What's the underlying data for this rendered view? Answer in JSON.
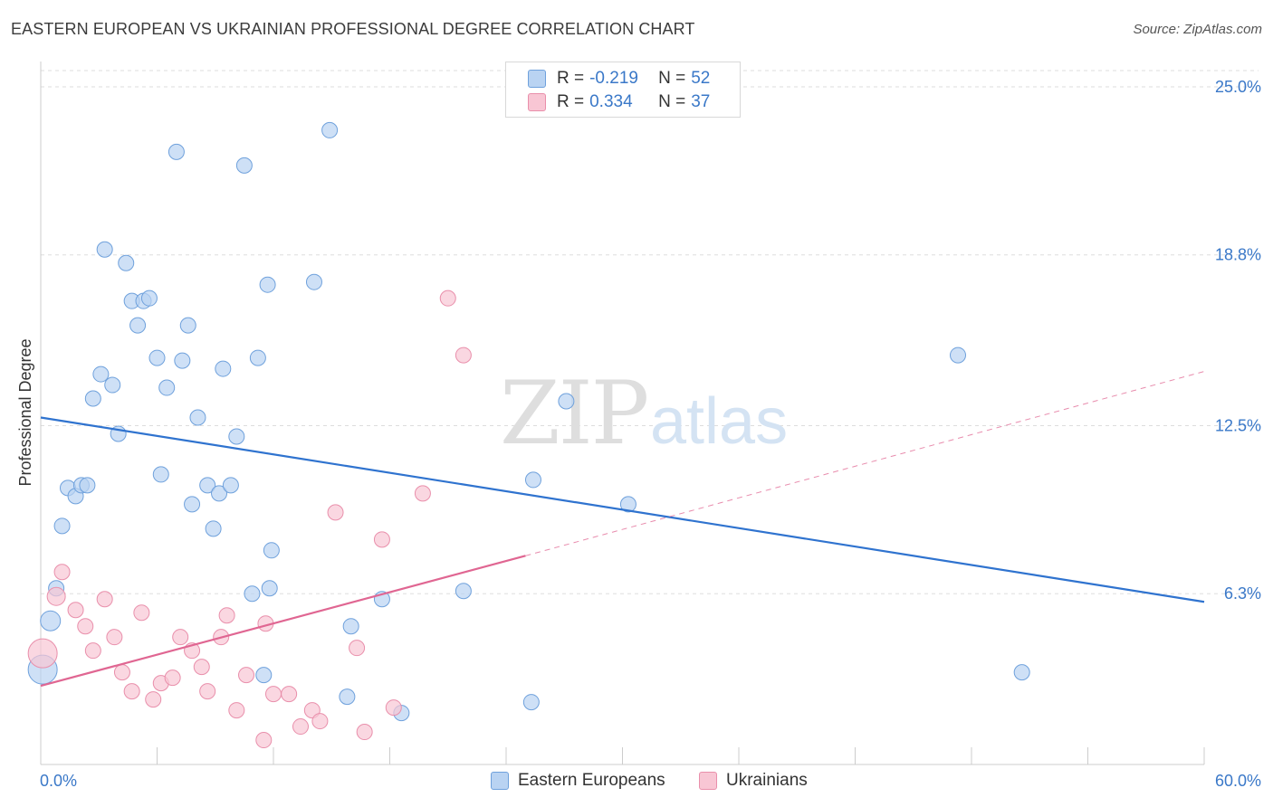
{
  "title": "EASTERN EUROPEAN VS UKRAINIAN PROFESSIONAL DEGREE CORRELATION CHART",
  "source": "Source: ZipAtlas.com",
  "watermark": {
    "zip": "ZIP",
    "atlas": "atlas"
  },
  "colors": {
    "blue_fill": "#b9d3f2",
    "blue_stroke": "#6fa1dc",
    "blue_line": "#2f73cf",
    "pink_fill": "#f8c6d4",
    "pink_stroke": "#e98fab",
    "pink_line": "#e06692",
    "tick_text": "#3a78c8",
    "grid": "#dddddd"
  },
  "legend": {
    "rows": [
      {
        "r_label": "R =",
        "r_value": "-0.219",
        "n_label": "N =",
        "n_value": "52",
        "color": "blue"
      },
      {
        "r_label": "R =",
        "r_value": "0.334",
        "n_label": "N =",
        "n_value": "37",
        "color": "pink"
      }
    ]
  },
  "bottom_legend": [
    {
      "label": "Eastern Europeans",
      "color": "blue"
    },
    {
      "label": "Ukrainians",
      "color": "pink"
    }
  ],
  "chart_data": {
    "type": "scatter",
    "title": "EASTERN EUROPEAN VS UKRAINIAN PROFESSIONAL DEGREE CORRELATION CHART",
    "xlabel": "",
    "ylabel": "Professional Degree",
    "xlim": [
      0,
      60
    ],
    "ylim": [
      0,
      25.6
    ],
    "x_tick_labels": [
      {
        "value": 0,
        "label": "0.0%"
      },
      {
        "value": 60,
        "label": "60.0%"
      }
    ],
    "y_tick_labels": [
      {
        "value": 25.0,
        "label": "25.0%"
      },
      {
        "value": 18.8,
        "label": "18.8%"
      },
      {
        "value": 12.5,
        "label": "12.5%"
      },
      {
        "value": 6.3,
        "label": "6.3%"
      }
    ],
    "grid": true,
    "legend_position": "top-center",
    "series": [
      {
        "name": "Eastern Europeans",
        "color": "blue",
        "trend": {
          "x": [
            0,
            60
          ],
          "y": [
            12.8,
            6.0
          ],
          "style": "solid"
        },
        "points": [
          [
            0.1,
            3.5,
            16
          ],
          [
            0.5,
            5.3,
            11
          ],
          [
            0.8,
            6.5,
            8
          ],
          [
            1.1,
            8.8,
            8
          ],
          [
            1.4,
            10.2,
            8
          ],
          [
            1.8,
            9.9,
            8
          ],
          [
            2.1,
            10.3,
            8
          ],
          [
            2.4,
            10.3,
            8
          ],
          [
            2.7,
            13.5,
            8
          ],
          [
            3.1,
            14.4,
            8
          ],
          [
            3.3,
            19.0,
            8
          ],
          [
            3.7,
            14.0,
            8
          ],
          [
            4.0,
            12.2,
            8
          ],
          [
            4.4,
            18.5,
            8
          ],
          [
            4.7,
            17.1,
            8
          ],
          [
            5.0,
            16.2,
            8
          ],
          [
            5.3,
            17.1,
            8
          ],
          [
            5.6,
            17.2,
            8
          ],
          [
            6.0,
            15.0,
            8
          ],
          [
            6.2,
            10.7,
            8
          ],
          [
            6.5,
            13.9,
            8
          ],
          [
            7.0,
            22.6,
            8
          ],
          [
            7.3,
            14.9,
            8
          ],
          [
            7.6,
            16.2,
            8
          ],
          [
            7.8,
            9.6,
            8
          ],
          [
            8.1,
            12.8,
            8
          ],
          [
            8.6,
            10.3,
            8
          ],
          [
            8.9,
            8.7,
            8
          ],
          [
            9.2,
            10.0,
            8
          ],
          [
            9.4,
            14.6,
            8
          ],
          [
            9.8,
            10.3,
            8
          ],
          [
            10.1,
            12.1,
            8
          ],
          [
            10.5,
            22.1,
            8
          ],
          [
            10.9,
            6.3,
            8
          ],
          [
            11.2,
            15.0,
            8
          ],
          [
            11.5,
            3.3,
            8
          ],
          [
            11.7,
            17.7,
            8
          ],
          [
            11.8,
            6.5,
            8
          ],
          [
            11.9,
            7.9,
            8
          ],
          [
            14.1,
            17.8,
            8
          ],
          [
            14.9,
            23.4,
            8
          ],
          [
            15.8,
            2.5,
            8
          ],
          [
            16.0,
            5.1,
            8
          ],
          [
            17.6,
            6.1,
            8
          ],
          [
            18.6,
            1.9,
            8
          ],
          [
            21.8,
            6.4,
            8
          ],
          [
            25.3,
            2.3,
            8
          ],
          [
            25.4,
            10.5,
            8
          ],
          [
            27.1,
            13.4,
            8
          ],
          [
            30.3,
            9.6,
            8
          ],
          [
            47.3,
            15.1,
            8
          ],
          [
            50.6,
            3.4,
            8
          ]
        ]
      },
      {
        "name": "Ukrainians",
        "color": "pink",
        "trend": {
          "x": [
            0,
            25
          ],
          "y": [
            2.9,
            7.7
          ],
          "style": "solid",
          "extended": {
            "x": [
              25,
              60
            ],
            "y": [
              7.7,
              14.5
            ],
            "style": "dashed"
          }
        },
        "points": [
          [
            0.1,
            4.1,
            16
          ],
          [
            0.8,
            6.2,
            10
          ],
          [
            1.1,
            7.1,
            8
          ],
          [
            1.8,
            5.7,
            8
          ],
          [
            2.3,
            5.1,
            8
          ],
          [
            2.7,
            4.2,
            8
          ],
          [
            3.3,
            6.1,
            8
          ],
          [
            3.8,
            4.7,
            8
          ],
          [
            4.2,
            3.4,
            8
          ],
          [
            4.7,
            2.7,
            8
          ],
          [
            5.2,
            5.6,
            8
          ],
          [
            5.8,
            2.4,
            8
          ],
          [
            6.2,
            3.0,
            8
          ],
          [
            6.8,
            3.2,
            8
          ],
          [
            7.2,
            4.7,
            8
          ],
          [
            7.8,
            4.2,
            8
          ],
          [
            8.3,
            3.6,
            8
          ],
          [
            8.6,
            2.7,
            8
          ],
          [
            9.3,
            4.7,
            8
          ],
          [
            9.6,
            5.5,
            8
          ],
          [
            10.1,
            2.0,
            8
          ],
          [
            10.6,
            3.3,
            8
          ],
          [
            11.5,
            0.9,
            8
          ],
          [
            11.6,
            5.2,
            8
          ],
          [
            12.0,
            2.6,
            8
          ],
          [
            12.8,
            2.6,
            8
          ],
          [
            13.4,
            1.4,
            8
          ],
          [
            14.0,
            2.0,
            8
          ],
          [
            14.4,
            1.6,
            8
          ],
          [
            15.2,
            9.3,
            8
          ],
          [
            16.3,
            4.3,
            8
          ],
          [
            16.7,
            1.2,
            8
          ],
          [
            17.6,
            8.3,
            8
          ],
          [
            18.2,
            2.1,
            8
          ],
          [
            19.7,
            10.0,
            8
          ],
          [
            21.0,
            17.2,
            8
          ],
          [
            21.8,
            15.1,
            8
          ]
        ]
      }
    ]
  }
}
